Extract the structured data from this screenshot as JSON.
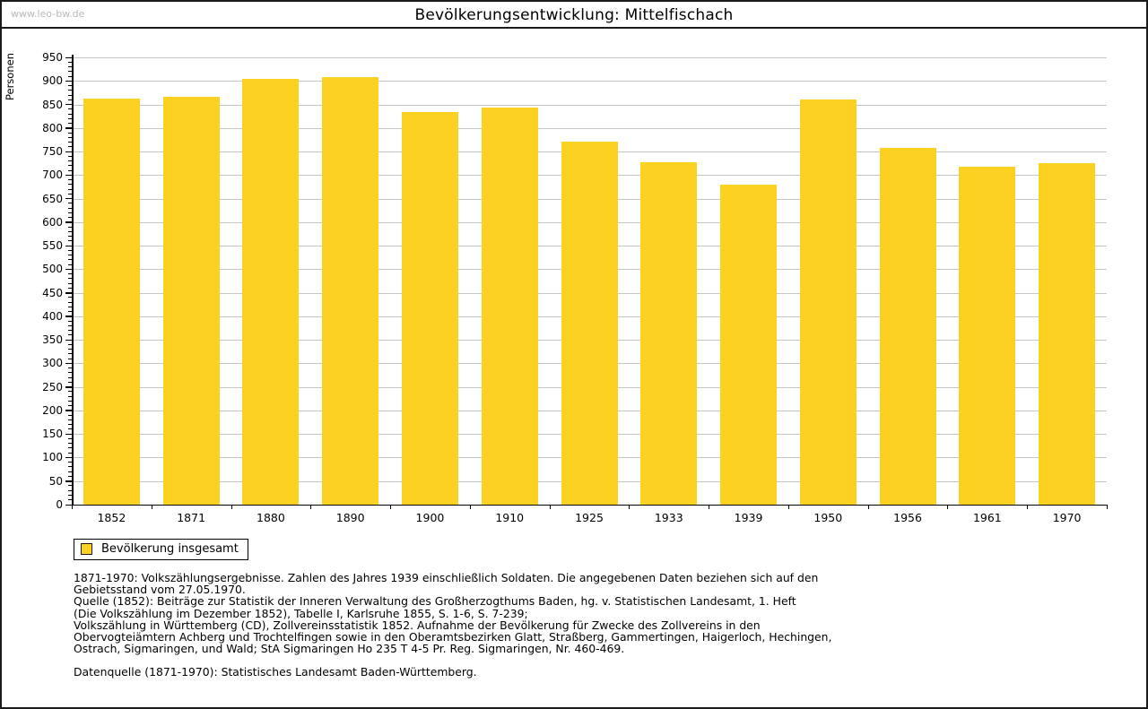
{
  "watermark": "www.leo-bw.de",
  "header": {
    "title": "Bevölkerungsentwicklung: Mittelfischach"
  },
  "chart_data": {
    "type": "bar",
    "title": "Bevölkerungsentwicklung: Mittelfischach",
    "ylabel": "Personen",
    "xlabel": "",
    "categories": [
      "1852",
      "1871",
      "1880",
      "1890",
      "1900",
      "1910",
      "1925",
      "1933",
      "1939",
      "1950",
      "1956",
      "1961",
      "1970"
    ],
    "values": [
      863,
      866,
      904,
      909,
      833,
      844,
      771,
      728,
      680,
      861,
      757,
      717,
      725
    ],
    "series_name": "Bevölkerung insgesamt",
    "ylim": [
      0,
      950
    ],
    "ytick_step": 50,
    "minor_tick_step": 10,
    "grid": true,
    "legend_position": "bottom-left",
    "bar_color": "#fcd122",
    "grid_color": "#c6c6c6",
    "axis_color": "#000000"
  },
  "footer": {
    "notes": [
      "1871-1970: Volkszählungsergebnisse. Zahlen des Jahres 1939 einschließlich Soldaten. Die angegebenen Daten beziehen sich auf den",
      "Gebietsstand vom 27.05.1970.",
      "Quelle (1852): Beiträge zur Statistik der Inneren Verwaltung des Großherzogthums Baden, hg. v. Statistischen Landesamt, 1. Heft",
      "(Die Volkszählung im Dezember 1852), Tabelle I, Karlsruhe 1855, S. 1-6, S. 7-239;",
      "Volkszählung in Württemberg (CD), Zollvereinsstatistik 1852. Aufnahme der Bevölkerung für Zwecke des Zollvereins in den",
      "Obervogteiämtern Achberg und Trochtelfingen sowie in den Oberamtsbezirken Glatt, Straßberg, Gammertingen, Haigerloch, Hechingen,",
      "Ostrach, Sigmaringen, und Wald; StA Sigmaringen Ho 235 T 4-5 Pr. Reg. Sigmaringen, Nr. 460-469."
    ],
    "datasource": "Datenquelle (1871-1970): Statistisches Landesamt Baden-Württemberg."
  }
}
